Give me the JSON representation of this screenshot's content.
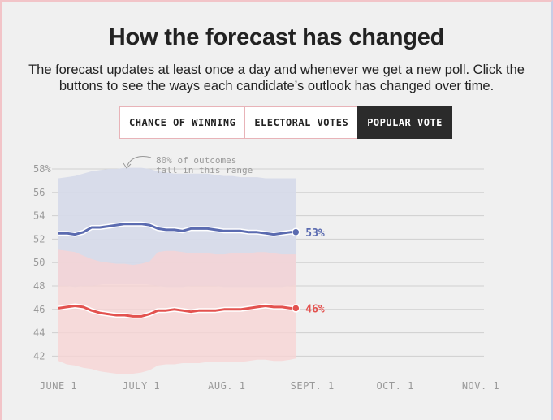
{
  "header": {
    "title": "How the forecast has changed",
    "subtitle": "The forecast updates at least once a day and whenever we get a new poll. Click the buttons to see the ways each candidate’s outlook has changed over time."
  },
  "tabs": [
    {
      "label": "CHANCE OF WINNING",
      "active": false
    },
    {
      "label": "ELECTORAL VOTES",
      "active": false
    },
    {
      "label": "POPULAR VOTE",
      "active": true
    }
  ],
  "colors": {
    "blue": "#5b6bb0",
    "red": "#e3524f",
    "blue_band": "#d6dae9",
    "red_band": "#f7d4d4"
  },
  "chart_data": {
    "type": "line",
    "title": "",
    "xlabel": "",
    "ylabel": "",
    "ylim": [
      40,
      59
    ],
    "y_ticks": [
      42,
      44,
      46,
      48,
      50,
      52,
      54,
      56,
      58
    ],
    "y_tick_labels": [
      "42",
      "44",
      "46",
      "48",
      "50",
      "52",
      "54",
      "56",
      "58%"
    ],
    "x_ticks": [
      "2020-06-01",
      "2020-07-01",
      "2020-08-01",
      "2020-09-01",
      "2020-10-01",
      "2020-11-01"
    ],
    "x_tick_labels": [
      "JUNE 1",
      "JULY 1",
      "AUG. 1",
      "SEPT. 1",
      "OCT. 1",
      "NOV. 1"
    ],
    "grid": true,
    "annotation": "80% of outcomes fall in this range",
    "series": [
      {
        "color": "#5b6bb0",
        "end_label": "53%",
        "x": [
          "2020-06-01",
          "2020-06-04",
          "2020-06-07",
          "2020-06-10",
          "2020-06-13",
          "2020-06-16",
          "2020-06-19",
          "2020-06-22",
          "2020-06-25",
          "2020-06-28",
          "2020-07-01",
          "2020-07-04",
          "2020-07-07",
          "2020-07-10",
          "2020-07-13",
          "2020-07-16",
          "2020-07-19",
          "2020-07-22",
          "2020-07-25",
          "2020-07-28",
          "2020-07-31",
          "2020-08-03",
          "2020-08-06",
          "2020-08-09",
          "2020-08-12",
          "2020-08-15",
          "2020-08-18",
          "2020-08-21",
          "2020-08-24",
          "2020-08-26"
        ],
        "values": [
          52.5,
          52.5,
          52.4,
          52.6,
          53.0,
          53.0,
          53.1,
          53.2,
          53.3,
          53.3,
          53.3,
          53.2,
          52.9,
          52.8,
          52.8,
          52.7,
          52.9,
          52.9,
          52.9,
          52.8,
          52.7,
          52.7,
          52.7,
          52.6,
          52.6,
          52.5,
          52.4,
          52.5,
          52.6,
          52.6
        ],
        "upper": [
          57.2,
          57.3,
          57.4,
          57.6,
          57.8,
          57.9,
          58.0,
          58.0,
          58.1,
          58.1,
          58.1,
          58.0,
          57.8,
          57.7,
          57.6,
          57.6,
          57.6,
          57.6,
          57.6,
          57.5,
          57.4,
          57.4,
          57.3,
          57.3,
          57.3,
          57.2,
          57.2,
          57.2,
          57.2,
          57.2
        ],
        "lower": [
          48.0,
          48.0,
          47.9,
          48.0,
          48.0,
          48.1,
          48.2,
          48.2,
          48.2,
          48.2,
          48.2,
          48.1,
          48.0,
          47.9,
          47.9,
          47.9,
          48.0,
          48.0,
          48.0,
          48.0,
          47.9,
          47.9,
          47.9,
          47.9,
          47.9,
          47.9,
          47.9,
          47.9,
          48.0,
          48.1
        ]
      },
      {
        "color": "#e3524f",
        "end_label": "46%",
        "x": [
          "2020-06-01",
          "2020-06-04",
          "2020-06-07",
          "2020-06-10",
          "2020-06-13",
          "2020-06-16",
          "2020-06-19",
          "2020-06-22",
          "2020-06-25",
          "2020-06-28",
          "2020-07-01",
          "2020-07-04",
          "2020-07-07",
          "2020-07-10",
          "2020-07-13",
          "2020-07-16",
          "2020-07-19",
          "2020-07-22",
          "2020-07-25",
          "2020-07-28",
          "2020-07-31",
          "2020-08-03",
          "2020-08-06",
          "2020-08-09",
          "2020-08-12",
          "2020-08-15",
          "2020-08-18",
          "2020-08-21",
          "2020-08-24",
          "2020-08-26"
        ],
        "values": [
          46.1,
          46.2,
          46.3,
          46.2,
          45.9,
          45.7,
          45.6,
          45.5,
          45.5,
          45.4,
          45.4,
          45.6,
          45.9,
          45.9,
          46.0,
          45.9,
          45.8,
          45.9,
          45.9,
          45.9,
          46.0,
          46.0,
          46.0,
          46.1,
          46.2,
          46.3,
          46.2,
          46.2,
          46.1,
          46.1
        ],
        "upper": [
          51.1,
          51.0,
          50.9,
          50.6,
          50.3,
          50.1,
          50.0,
          49.9,
          49.9,
          49.8,
          49.9,
          50.1,
          50.9,
          51.0,
          51.0,
          50.9,
          50.8,
          50.8,
          50.8,
          50.7,
          50.7,
          50.8,
          50.8,
          50.8,
          50.9,
          50.9,
          50.8,
          50.7,
          50.7,
          50.7
        ],
        "lower": [
          41.6,
          41.3,
          41.2,
          41.0,
          40.9,
          40.7,
          40.6,
          40.5,
          40.5,
          40.5,
          40.6,
          40.8,
          41.2,
          41.3,
          41.3,
          41.4,
          41.4,
          41.4,
          41.5,
          41.5,
          41.5,
          41.5,
          41.5,
          41.6,
          41.7,
          41.7,
          41.6,
          41.6,
          41.7,
          41.8
        ]
      }
    ]
  }
}
